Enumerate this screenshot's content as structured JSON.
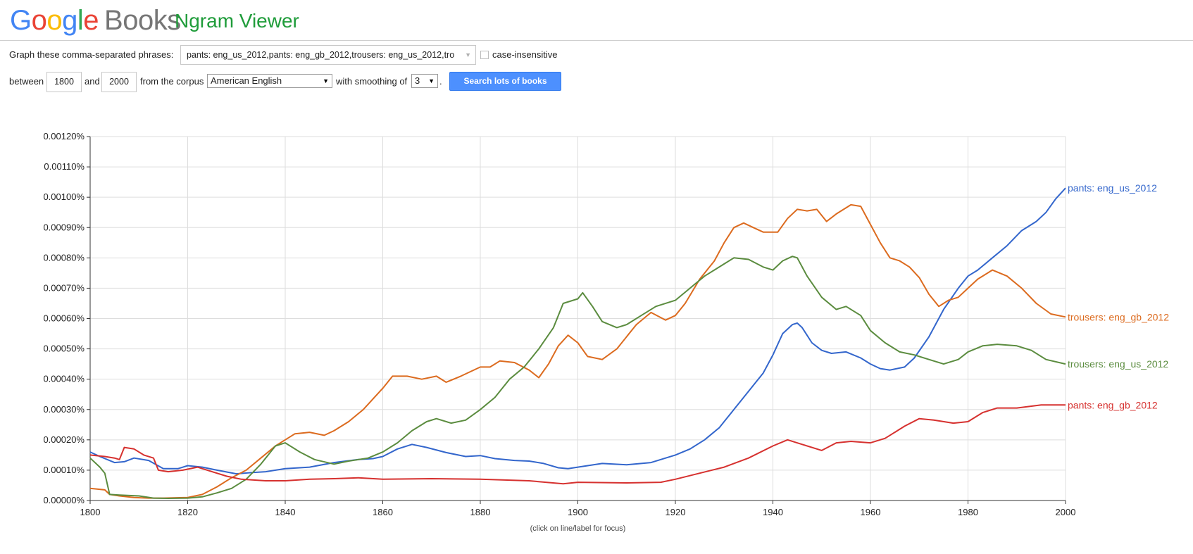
{
  "header": {
    "logo_letters": [
      {
        "ch": "G",
        "color": "#4285f4"
      },
      {
        "ch": "o",
        "color": "#ea4335"
      },
      {
        "ch": "o",
        "color": "#fbbc05"
      },
      {
        "ch": "g",
        "color": "#4285f4"
      },
      {
        "ch": "l",
        "color": "#34a853"
      },
      {
        "ch": "e",
        "color": "#ea4335"
      }
    ],
    "logo_suffix": "Books",
    "app_title": "Ngram Viewer"
  },
  "form": {
    "phrases_label": "Graph these comma-separated phrases:",
    "phrases_value": "pants: eng_us_2012,pants: eng_gb_2012,trousers: eng_us_2012,tro",
    "case_insensitive_label": "case-insensitive",
    "between_label": "between",
    "year_start": "1800",
    "and_label": "and",
    "year_end": "2000",
    "corpus_label": "from the corpus",
    "corpus_value": "American English",
    "smoothing_label": "with smoothing of",
    "smoothing_value": "3",
    "period": ".",
    "search_button": "Search lots of books"
  },
  "footnote": "(click on line/label for focus)",
  "chart_data": {
    "type": "line",
    "xlim": [
      1800,
      2000
    ],
    "ylim": [
      0,
      1.2e-05
    ],
    "x_ticks": [
      "1800",
      "1820",
      "1840",
      "1860",
      "1880",
      "1900",
      "1920",
      "1940",
      "1960",
      "1980",
      "2000"
    ],
    "y_ticks": [
      "0.00000%",
      "0.00010%",
      "0.00020%",
      "0.00030%",
      "0.00040%",
      "0.00050%",
      "0.00060%",
      "0.00070%",
      "0.00080%",
      "0.00090%",
      "0.00100%",
      "0.00110%",
      "0.00120%"
    ],
    "grid": true,
    "legend": "right-end labels",
    "series": [
      {
        "name": "pants: eng_us_2012",
        "color": "#3366cc",
        "points": [
          [
            1800,
            1.6e-06
          ],
          [
            1802,
            1.45e-06
          ],
          [
            1805,
            1.25e-06
          ],
          [
            1807,
            1.28e-06
          ],
          [
            1809,
            1.4e-06
          ],
          [
            1812,
            1.32e-06
          ],
          [
            1815,
            1.05e-06
          ],
          [
            1818,
            1.05e-06
          ],
          [
            1820,
            1.15e-06
          ],
          [
            1823,
            1.1e-06
          ],
          [
            1826,
            1e-06
          ],
          [
            1830,
            8.8e-07
          ],
          [
            1833,
            9.2e-07
          ],
          [
            1836,
            9.5e-07
          ],
          [
            1840,
            1.05e-06
          ],
          [
            1845,
            1.1e-06
          ],
          [
            1850,
            1.25e-06
          ],
          [
            1855,
            1.35e-06
          ],
          [
            1858,
            1.38e-06
          ],
          [
            1860,
            1.45e-06
          ],
          [
            1863,
            1.7e-06
          ],
          [
            1866,
            1.85e-06
          ],
          [
            1869,
            1.75e-06
          ],
          [
            1873,
            1.58e-06
          ],
          [
            1877,
            1.45e-06
          ],
          [
            1880,
            1.48e-06
          ],
          [
            1883,
            1.38e-06
          ],
          [
            1887,
            1.32e-06
          ],
          [
            1890,
            1.3e-06
          ],
          [
            1893,
            1.22e-06
          ],
          [
            1896,
            1.08e-06
          ],
          [
            1898,
            1.05e-06
          ],
          [
            1900,
            1.1e-06
          ],
          [
            1905,
            1.22e-06
          ],
          [
            1910,
            1.18e-06
          ],
          [
            1915,
            1.25e-06
          ],
          [
            1920,
            1.5e-06
          ],
          [
            1923,
            1.7e-06
          ],
          [
            1926,
            2e-06
          ],
          [
            1929,
            2.4e-06
          ],
          [
            1932,
            3e-06
          ],
          [
            1935,
            3.6e-06
          ],
          [
            1938,
            4.2e-06
          ],
          [
            1940,
            4.8e-06
          ],
          [
            1942,
            5.5e-06
          ],
          [
            1944,
            5.8e-06
          ],
          [
            1945,
            5.85e-06
          ],
          [
            1946,
            5.7e-06
          ],
          [
            1948,
            5.2e-06
          ],
          [
            1950,
            4.95e-06
          ],
          [
            1952,
            4.85e-06
          ],
          [
            1955,
            4.9e-06
          ],
          [
            1958,
            4.7e-06
          ],
          [
            1960,
            4.5e-06
          ],
          [
            1962,
            4.35e-06
          ],
          [
            1964,
            4.3e-06
          ],
          [
            1967,
            4.4e-06
          ],
          [
            1969,
            4.7e-06
          ],
          [
            1972,
            5.4e-06
          ],
          [
            1975,
            6.3e-06
          ],
          [
            1978,
            7e-06
          ],
          [
            1980,
            7.4e-06
          ],
          [
            1982,
            7.6e-06
          ],
          [
            1985,
            8e-06
          ],
          [
            1988,
            8.4e-06
          ],
          [
            1991,
            8.9e-06
          ],
          [
            1994,
            9.2e-06
          ],
          [
            1996,
            9.5e-06
          ],
          [
            1998,
            9.95e-06
          ],
          [
            2000,
            1.03e-05
          ]
        ]
      },
      {
        "name": "trousers: eng_gb_2012",
        "color": "#dc6b1f",
        "points": [
          [
            1800,
            4e-07
          ],
          [
            1803,
            3.5e-07
          ],
          [
            1804,
            2e-07
          ],
          [
            1806,
            1.5e-07
          ],
          [
            1809,
            1e-07
          ],
          [
            1812,
            8e-08
          ],
          [
            1815,
            8e-08
          ],
          [
            1820,
            1e-07
          ],
          [
            1823,
            2e-07
          ],
          [
            1826,
            4.5e-07
          ],
          [
            1829,
            7.5e-07
          ],
          [
            1832,
            1e-06
          ],
          [
            1835,
            1.4e-06
          ],
          [
            1838,
            1.8e-06
          ],
          [
            1840,
            2e-06
          ],
          [
            1842,
            2.2e-06
          ],
          [
            1845,
            2.25e-06
          ],
          [
            1848,
            2.15e-06
          ],
          [
            1850,
            2.3e-06
          ],
          [
            1853,
            2.6e-06
          ],
          [
            1856,
            3e-06
          ],
          [
            1860,
            3.7e-06
          ],
          [
            1862,
            4.1e-06
          ],
          [
            1865,
            4.1e-06
          ],
          [
            1868,
            4e-06
          ],
          [
            1871,
            4.1e-06
          ],
          [
            1873,
            3.9e-06
          ],
          [
            1876,
            4.1e-06
          ],
          [
            1880,
            4.4e-06
          ],
          [
            1882,
            4.4e-06
          ],
          [
            1884,
            4.6e-06
          ],
          [
            1887,
            4.55e-06
          ],
          [
            1890,
            4.3e-06
          ],
          [
            1892,
            4.05e-06
          ],
          [
            1894,
            4.5e-06
          ],
          [
            1896,
            5.1e-06
          ],
          [
            1898,
            5.45e-06
          ],
          [
            1900,
            5.2e-06
          ],
          [
            1902,
            4.75e-06
          ],
          [
            1905,
            4.65e-06
          ],
          [
            1908,
            5e-06
          ],
          [
            1912,
            5.8e-06
          ],
          [
            1915,
            6.2e-06
          ],
          [
            1918,
            5.95e-06
          ],
          [
            1920,
            6.1e-06
          ],
          [
            1922,
            6.5e-06
          ],
          [
            1925,
            7.3e-06
          ],
          [
            1928,
            7.9e-06
          ],
          [
            1930,
            8.5e-06
          ],
          [
            1932,
            9e-06
          ],
          [
            1934,
            9.15e-06
          ],
          [
            1936,
            9e-06
          ],
          [
            1938,
            8.85e-06
          ],
          [
            1941,
            8.85e-06
          ],
          [
            1943,
            9.3e-06
          ],
          [
            1945,
            9.6e-06
          ],
          [
            1947,
            9.55e-06
          ],
          [
            1949,
            9.6e-06
          ],
          [
            1951,
            9.2e-06
          ],
          [
            1953,
            9.45e-06
          ],
          [
            1956,
            9.75e-06
          ],
          [
            1958,
            9.7e-06
          ],
          [
            1960,
            9.1e-06
          ],
          [
            1962,
            8.5e-06
          ],
          [
            1964,
            8e-06
          ],
          [
            1966,
            7.9e-06
          ],
          [
            1968,
            7.7e-06
          ],
          [
            1970,
            7.35e-06
          ],
          [
            1972,
            6.8e-06
          ],
          [
            1974,
            6.4e-06
          ],
          [
            1976,
            6.6e-06
          ],
          [
            1978,
            6.7e-06
          ],
          [
            1980,
            7e-06
          ],
          [
            1982,
            7.3e-06
          ],
          [
            1985,
            7.6e-06
          ],
          [
            1988,
            7.4e-06
          ],
          [
            1991,
            7e-06
          ],
          [
            1994,
            6.5e-06
          ],
          [
            1997,
            6.15e-06
          ],
          [
            2000,
            6.05e-06
          ]
        ]
      },
      {
        "name": "trousers: eng_us_2012",
        "color": "#5b8c3f",
        "points": [
          [
            1800,
            1.4e-06
          ],
          [
            1802,
            1.1e-06
          ],
          [
            1803,
            9e-07
          ],
          [
            1804,
            2e-07
          ],
          [
            1806,
            1.8e-07
          ],
          [
            1810,
            1.5e-07
          ],
          [
            1813,
            8e-08
          ],
          [
            1816,
            7e-08
          ],
          [
            1820,
            8e-08
          ],
          [
            1823,
            1.2e-07
          ],
          [
            1826,
            2.5e-07
          ],
          [
            1829,
            4e-07
          ],
          [
            1832,
            7e-07
          ],
          [
            1835,
            1.2e-06
          ],
          [
            1838,
            1.8e-06
          ],
          [
            1840,
            1.9e-06
          ],
          [
            1843,
            1.6e-06
          ],
          [
            1846,
            1.35e-06
          ],
          [
            1850,
            1.2e-06
          ],
          [
            1853,
            1.3e-06
          ],
          [
            1857,
            1.4e-06
          ],
          [
            1860,
            1.6e-06
          ],
          [
            1863,
            1.9e-06
          ],
          [
            1866,
            2.3e-06
          ],
          [
            1869,
            2.6e-06
          ],
          [
            1871,
            2.7e-06
          ],
          [
            1874,
            2.55e-06
          ],
          [
            1877,
            2.65e-06
          ],
          [
            1880,
            3e-06
          ],
          [
            1883,
            3.4e-06
          ],
          [
            1886,
            4e-06
          ],
          [
            1889,
            4.4e-06
          ],
          [
            1892,
            5e-06
          ],
          [
            1895,
            5.7e-06
          ],
          [
            1897,
            6.5e-06
          ],
          [
            1900,
            6.65e-06
          ],
          [
            1901,
            6.85e-06
          ],
          [
            1903,
            6.4e-06
          ],
          [
            1905,
            5.9e-06
          ],
          [
            1908,
            5.7e-06
          ],
          [
            1910,
            5.8e-06
          ],
          [
            1913,
            6.1e-06
          ],
          [
            1916,
            6.4e-06
          ],
          [
            1920,
            6.6e-06
          ],
          [
            1923,
            7e-06
          ],
          [
            1926,
            7.4e-06
          ],
          [
            1930,
            7.8e-06
          ],
          [
            1932,
            8e-06
          ],
          [
            1935,
            7.95e-06
          ],
          [
            1938,
            7.7e-06
          ],
          [
            1940,
            7.6e-06
          ],
          [
            1942,
            7.9e-06
          ],
          [
            1944,
            8.05e-06
          ],
          [
            1945,
            8e-06
          ],
          [
            1947,
            7.4e-06
          ],
          [
            1950,
            6.7e-06
          ],
          [
            1953,
            6.3e-06
          ],
          [
            1955,
            6.4e-06
          ],
          [
            1958,
            6.1e-06
          ],
          [
            1960,
            5.6e-06
          ],
          [
            1963,
            5.2e-06
          ],
          [
            1966,
            4.9e-06
          ],
          [
            1969,
            4.8e-06
          ],
          [
            1972,
            4.65e-06
          ],
          [
            1975,
            4.5e-06
          ],
          [
            1978,
            4.65e-06
          ],
          [
            1980,
            4.9e-06
          ],
          [
            1983,
            5.1e-06
          ],
          [
            1986,
            5.15e-06
          ],
          [
            1990,
            5.1e-06
          ],
          [
            1993,
            4.95e-06
          ],
          [
            1996,
            4.65e-06
          ],
          [
            2000,
            4.5e-06
          ]
        ]
      },
      {
        "name": "pants: eng_gb_2012",
        "color": "#d6312f",
        "points": [
          [
            1800,
            1.5e-06
          ],
          [
            1803,
            1.45e-06
          ],
          [
            1805,
            1.4e-06
          ],
          [
            1806,
            1.35e-06
          ],
          [
            1807,
            1.75e-06
          ],
          [
            1809,
            1.7e-06
          ],
          [
            1811,
            1.5e-06
          ],
          [
            1813,
            1.4e-06
          ],
          [
            1814,
            1e-06
          ],
          [
            1816,
            9.5e-07
          ],
          [
            1819,
            1e-06
          ],
          [
            1822,
            1.1e-06
          ],
          [
            1825,
            9.5e-07
          ],
          [
            1828,
            8e-07
          ],
          [
            1831,
            7e-07
          ],
          [
            1836,
            6.5e-07
          ],
          [
            1840,
            6.5e-07
          ],
          [
            1845,
            7e-07
          ],
          [
            1850,
            7.2e-07
          ],
          [
            1855,
            7.5e-07
          ],
          [
            1860,
            7e-07
          ],
          [
            1870,
            7.2e-07
          ],
          [
            1880,
            7e-07
          ],
          [
            1890,
            6.5e-07
          ],
          [
            1897,
            5.5e-07
          ],
          [
            1900,
            6e-07
          ],
          [
            1910,
            5.8e-07
          ],
          [
            1917,
            6e-07
          ],
          [
            1920,
            7e-07
          ],
          [
            1925,
            9e-07
          ],
          [
            1930,
            1.1e-06
          ],
          [
            1935,
            1.4e-06
          ],
          [
            1940,
            1.8e-06
          ],
          [
            1943,
            2e-06
          ],
          [
            1946,
            1.85e-06
          ],
          [
            1950,
            1.65e-06
          ],
          [
            1953,
            1.9e-06
          ],
          [
            1956,
            1.95e-06
          ],
          [
            1960,
            1.9e-06
          ],
          [
            1963,
            2.05e-06
          ],
          [
            1965,
            2.25e-06
          ],
          [
            1967,
            2.45e-06
          ],
          [
            1970,
            2.7e-06
          ],
          [
            1973,
            2.65e-06
          ],
          [
            1977,
            2.55e-06
          ],
          [
            1980,
            2.6e-06
          ],
          [
            1983,
            2.9e-06
          ],
          [
            1986,
            3.05e-06
          ],
          [
            1990,
            3.05e-06
          ],
          [
            1995,
            3.15e-06
          ],
          [
            2000,
            3.15e-06
          ]
        ]
      }
    ]
  }
}
